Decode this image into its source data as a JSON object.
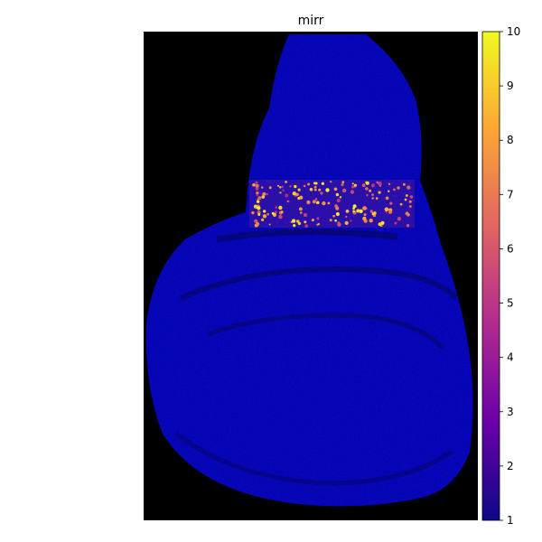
{
  "chart_data": {
    "type": "heatmap",
    "title": "mirr",
    "xlabel": "",
    "ylabel": "",
    "grid": false,
    "colormap": "plasma",
    "background_color": "#000000",
    "colorbar": {
      "min": 1,
      "max": 10,
      "ticks": [
        "1",
        "2",
        "3",
        "4",
        "5",
        "6",
        "7",
        "8",
        "9",
        "10"
      ],
      "stops": [
        "#0d0887",
        "#6a00a8",
        "#b12a90",
        "#e16462",
        "#fca636",
        "#f0f921"
      ]
    },
    "tissue_base_value": 1,
    "expression_band_value_range": [
      4,
      10
    ]
  }
}
